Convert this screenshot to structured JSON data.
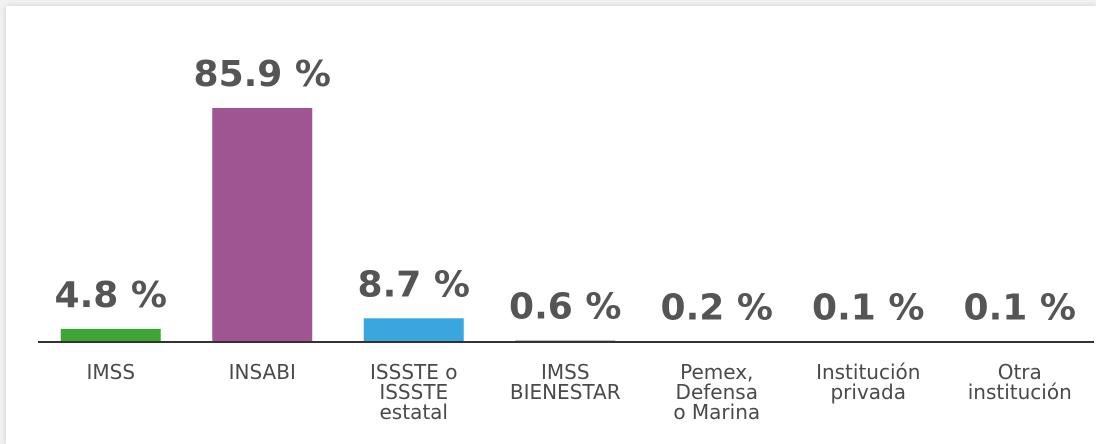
{
  "chart_data": {
    "type": "bar",
    "categories": [
      "IMSS",
      "INSABI",
      "ISSSTE o\nISSSTE\nestatal",
      "IMSS\nBIENESTAR",
      "Pemex,\nDefensa\no Marina",
      "Institución\nprivada",
      "Otra\ninstitución"
    ],
    "values": [
      4.8,
      85.9,
      8.7,
      0.6,
      0.2,
      0.1,
      0.1
    ],
    "value_labels": [
      "4.8 %",
      "85.9 %",
      "8.7 %",
      "0.6 %",
      "0.2 %",
      "0.1 %",
      "0.1 %"
    ],
    "colors": [
      "#3fa535",
      "#9e5592",
      "#3aa6df",
      "#9a9a9a",
      "#9a9a9a",
      "#9a9a9a",
      "#9a9a9a"
    ]
  }
}
